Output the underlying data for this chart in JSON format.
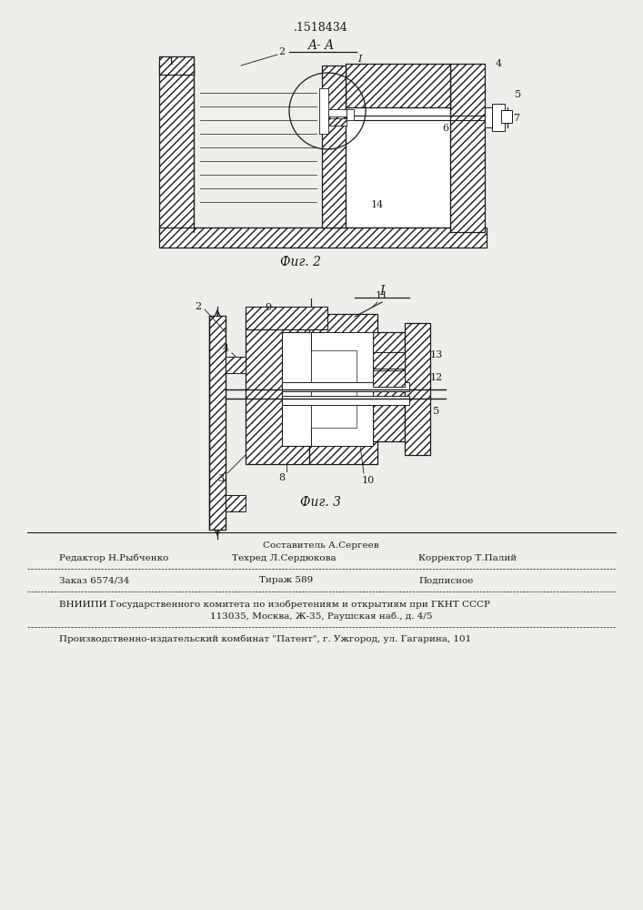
{
  "patent_number": ".1518434",
  "fig2_label": "A- A",
  "fig2_caption": "Фиг. 2",
  "fig3_label": "I",
  "fig3_caption": "Фиг. 3",
  "footer_sestavitel_title": "Составитель А.Сергеев",
  "footer_redaktor": "Редактор Н.Рыбченко",
  "footer_tehred": "Техред Л.Сердюкова",
  "footer_korrektor": "Корректор Т.Палий",
  "footer_zakaz": "Заказ 6574/34",
  "footer_tirazh": "Тираж 589",
  "footer_podpisnoe": "Подписное",
  "footer_vniipи": "ВНИИПИ Государственного комитета по изобретениям и открытиям при ГКНТ СССР",
  "footer_address": "113035, Москва, Ж-35, Раушская наб., д. 4/5",
  "footer_patent": "Производственно-издательский комбинат \"Патент\", г. Ужгород, ул. Гагарина, 101",
  "bg_color": "#f0eeea",
  "lc": "#1a1a1a"
}
